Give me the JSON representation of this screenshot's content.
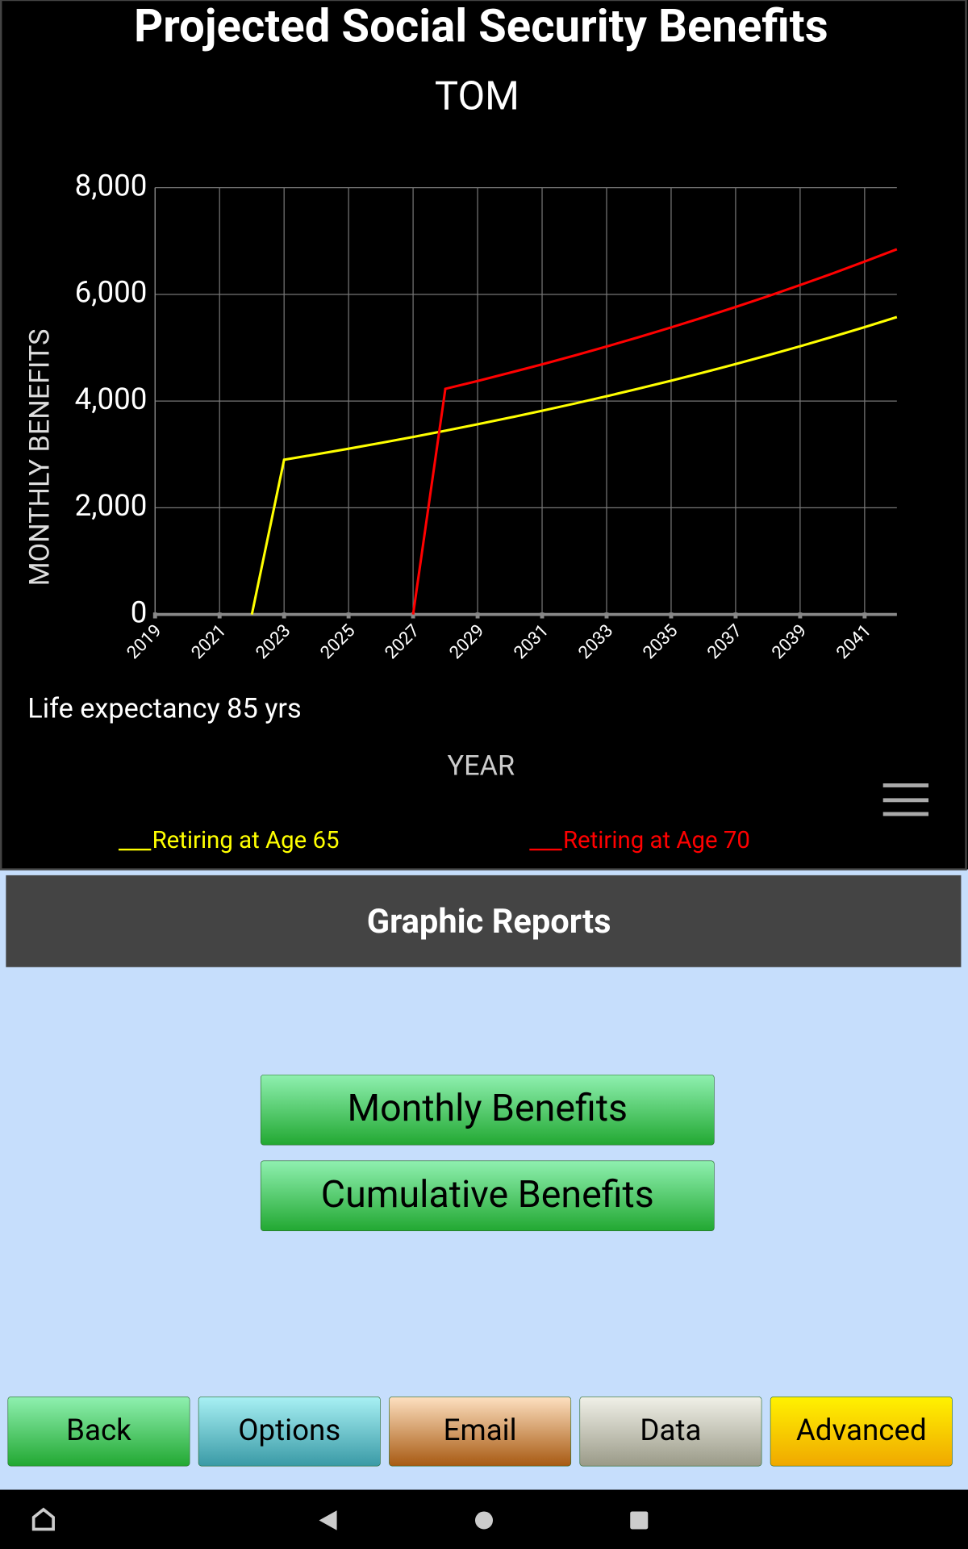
{
  "chart_data": {
    "type": "line",
    "title": "Projected Social Security Benefits",
    "subtitle": "TOM",
    "y_label": "MONTHLY BENEFITS",
    "x_label": "YEAR",
    "annotation": "Life expectancy 85 yrs",
    "xlim": [
      2019,
      2042
    ],
    "xticks": [
      2019,
      2021,
      2023,
      2025,
      2027,
      2029,
      2031,
      2033,
      2035,
      2037,
      2039,
      2041
    ],
    "ylim": [
      0,
      8000
    ],
    "yticks": [
      0,
      {
        "value": 2000,
        "label": "2,000"
      },
      {
        "value": 4000,
        "label": "4,000"
      },
      {
        "value": 6000,
        "label": "6,000"
      },
      {
        "value": 8000,
        "label": "8,000"
      }
    ],
    "grid": true,
    "series": [
      {
        "name": "Retiring at Age 65",
        "color": "#ffff00",
        "x": [
          2022,
          2023,
          2024,
          2025,
          2026,
          2027,
          2028,
          2029,
          2030,
          2031,
          2032,
          2033,
          2034,
          2035,
          2036,
          2037,
          2038,
          2039,
          2040,
          2041,
          2042
        ],
        "values": [
          0,
          2900,
          3002,
          3107,
          3215,
          3328,
          3444,
          3565,
          3690,
          3819,
          3952,
          4091,
          4234,
          4382,
          4535,
          4694,
          4858,
          5028,
          5204,
          5386,
          5575
        ]
      },
      {
        "name": "Retiring at Age 70",
        "color": "#ff0000",
        "x": [
          2027,
          2028,
          2029,
          2030,
          2031,
          2032,
          2033,
          2034,
          2035,
          2036,
          2037,
          2038,
          2039,
          2040,
          2041,
          2042
        ],
        "values": [
          0,
          4230,
          4377,
          4531,
          4689,
          4853,
          5023,
          5199,
          5381,
          5569,
          5764,
          5966,
          6175,
          6391,
          6615,
          6846
        ]
      }
    ]
  },
  "panel": {
    "title": "Graphic Reports",
    "buttons": [
      "Monthly Benefits",
      "Cumulative Benefits"
    ]
  },
  "toolbar": [
    "Back",
    "Options",
    "Email",
    "Data",
    "Advanced"
  ]
}
